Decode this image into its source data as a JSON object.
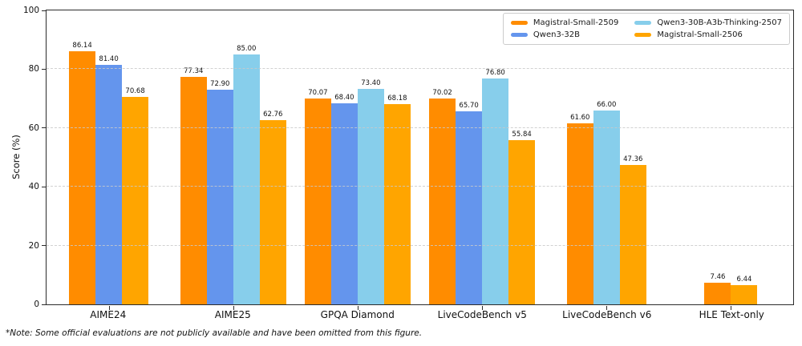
{
  "chart_data": {
    "type": "bar",
    "title": "",
    "ylabel": "Score (%)",
    "xlabel": "",
    "ylim": [
      0,
      100
    ],
    "yticks": [
      0,
      20,
      40,
      60,
      80,
      100
    ],
    "grid": "horizontal dashed lines at y ticks, drawn faintly over bars",
    "legend_position": "top-right inside plot, 2 columns",
    "value_label_format": "2 decimal places above each bar",
    "categories": [
      "AIME24",
      "AIME25",
      "GPQA Diamond",
      "LiveCodeBench v5",
      "LiveCodeBench v6",
      "HLE Text-only"
    ],
    "series": [
      {
        "name": "Magistral-Small-2509",
        "color": "#FF8C00",
        "values": [
          86.14,
          77.34,
          70.07,
          70.02,
          61.6,
          7.46
        ]
      },
      {
        "name": "Qwen3-32B",
        "color": "#6495ED",
        "values": [
          81.4,
          72.9,
          68.4,
          65.7,
          null,
          null
        ]
      },
      {
        "name": "Qwen3-30B-A3b-Thinking-2507",
        "color": "#87CEEB",
        "values": [
          null,
          85.0,
          73.4,
          76.8,
          66.0,
          null
        ]
      },
      {
        "name": "Magistral-Small-2506",
        "color": "#FFA500",
        "values": [
          70.68,
          62.76,
          68.18,
          55.84,
          47.36,
          6.44
        ]
      }
    ],
    "note": "*Note: Some official evaluations are not publicly available and have been omitted from this figure.",
    "colors": {
      "background": "#ffffff",
      "axis": "#2b2b2b",
      "gridline": "#c9c9c9",
      "text": "#111111",
      "legend_border": "#cccccc"
    }
  }
}
